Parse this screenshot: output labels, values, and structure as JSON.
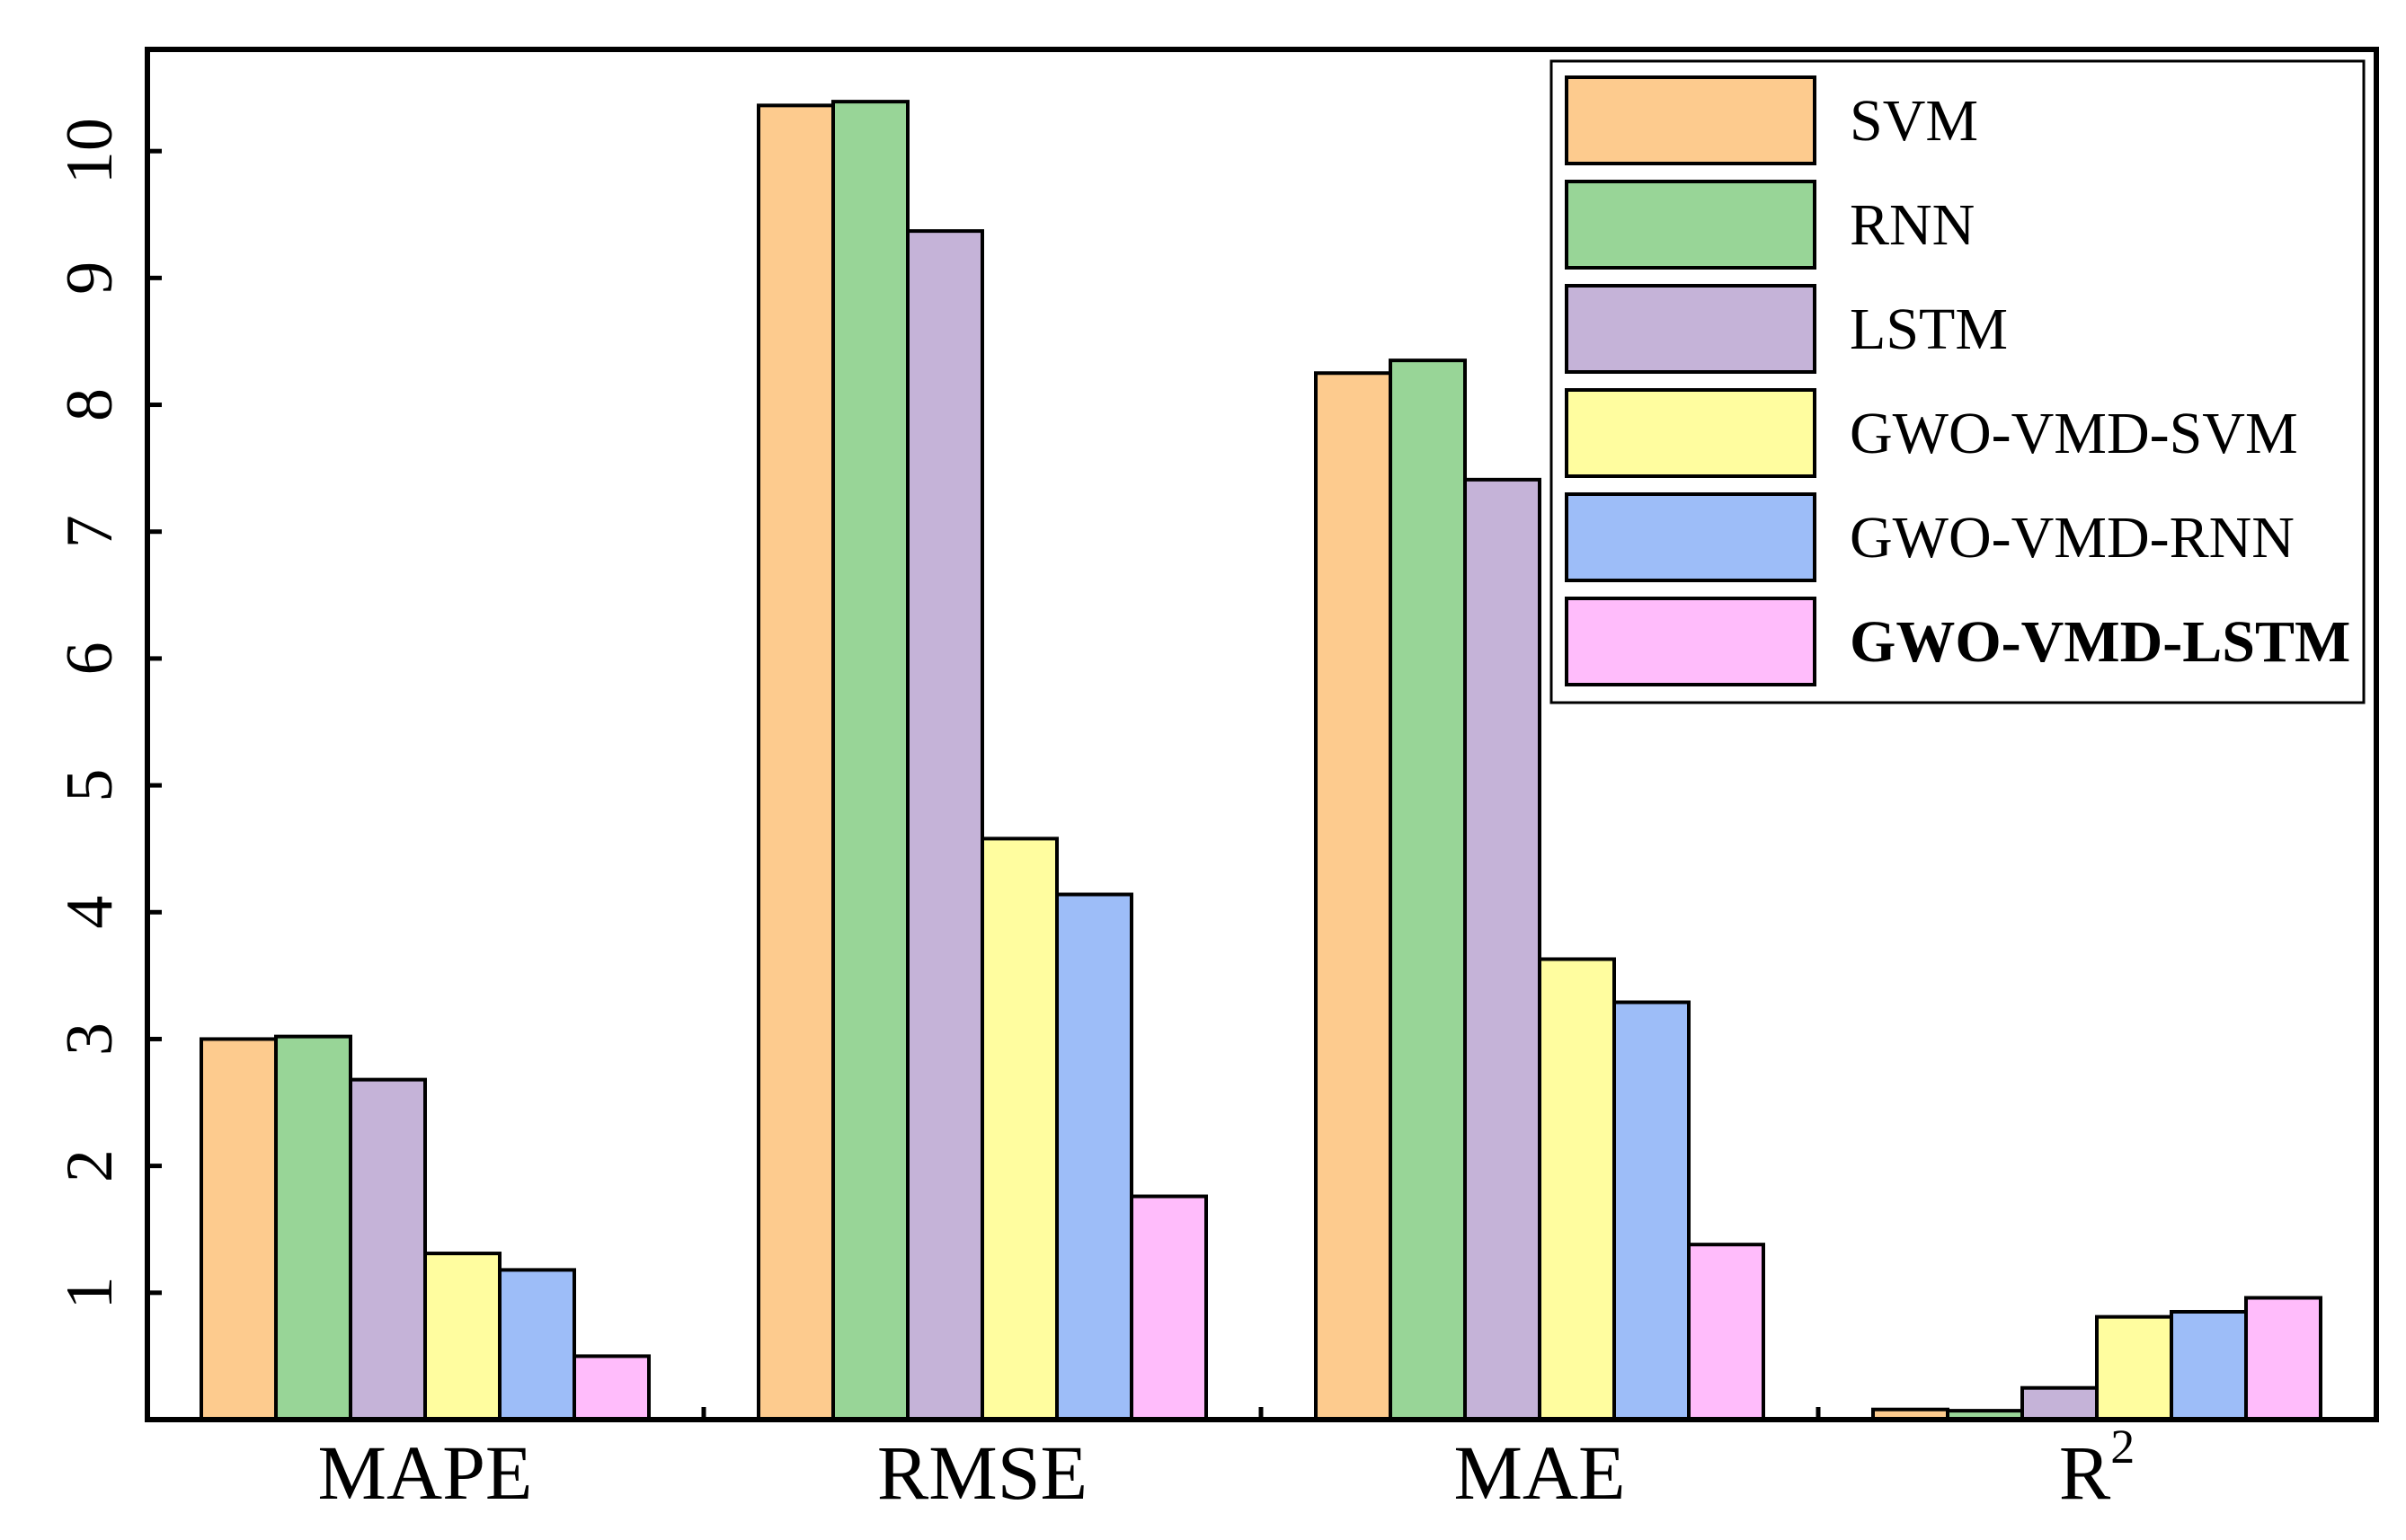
{
  "chart_data": {
    "type": "bar",
    "title": "",
    "xlabel": "",
    "ylabel": "",
    "ylim": [
      0,
      11
    ],
    "yticks": [
      1,
      2,
      3,
      4,
      5,
      6,
      7,
      8,
      9,
      10
    ],
    "ytick_labels": [
      "1",
      "2",
      "3",
      "4",
      "5",
      "6",
      "7",
      "8",
      "9",
      "10"
    ],
    "grid": false,
    "legend_position": "top-right",
    "categories": [
      {
        "label": "MAPE"
      },
      {
        "label": "RMSE"
      },
      {
        "label": "MAE"
      },
      {
        "label": "R",
        "superscript": "2"
      }
    ],
    "series": [
      {
        "name": "SVM",
        "color": "#FDCB8E",
        "values": [
          3.0,
          10.36,
          8.25,
          0.08
        ]
      },
      {
        "name": "RNN",
        "color": "#98D597",
        "values": [
          3.02,
          10.39,
          8.35,
          0.07
        ]
      },
      {
        "name": "LSTM",
        "color": "#C5B3D8",
        "values": [
          2.68,
          9.37,
          7.41,
          0.25
        ]
      },
      {
        "name": "GWO-VMD-SVM",
        "color": "#FFFD9F",
        "values": [
          1.31,
          4.58,
          3.63,
          0.81
        ]
      },
      {
        "name": "GWO-VMD-RNN",
        "color": "#9DBDF8",
        "values": [
          1.18,
          4.14,
          3.29,
          0.85
        ]
      },
      {
        "name": "GWO-VMD-LSTM",
        "color": "#FFBCFB",
        "values": [
          0.5,
          1.76,
          1.38,
          0.96
        ],
        "bold": true
      }
    ]
  }
}
